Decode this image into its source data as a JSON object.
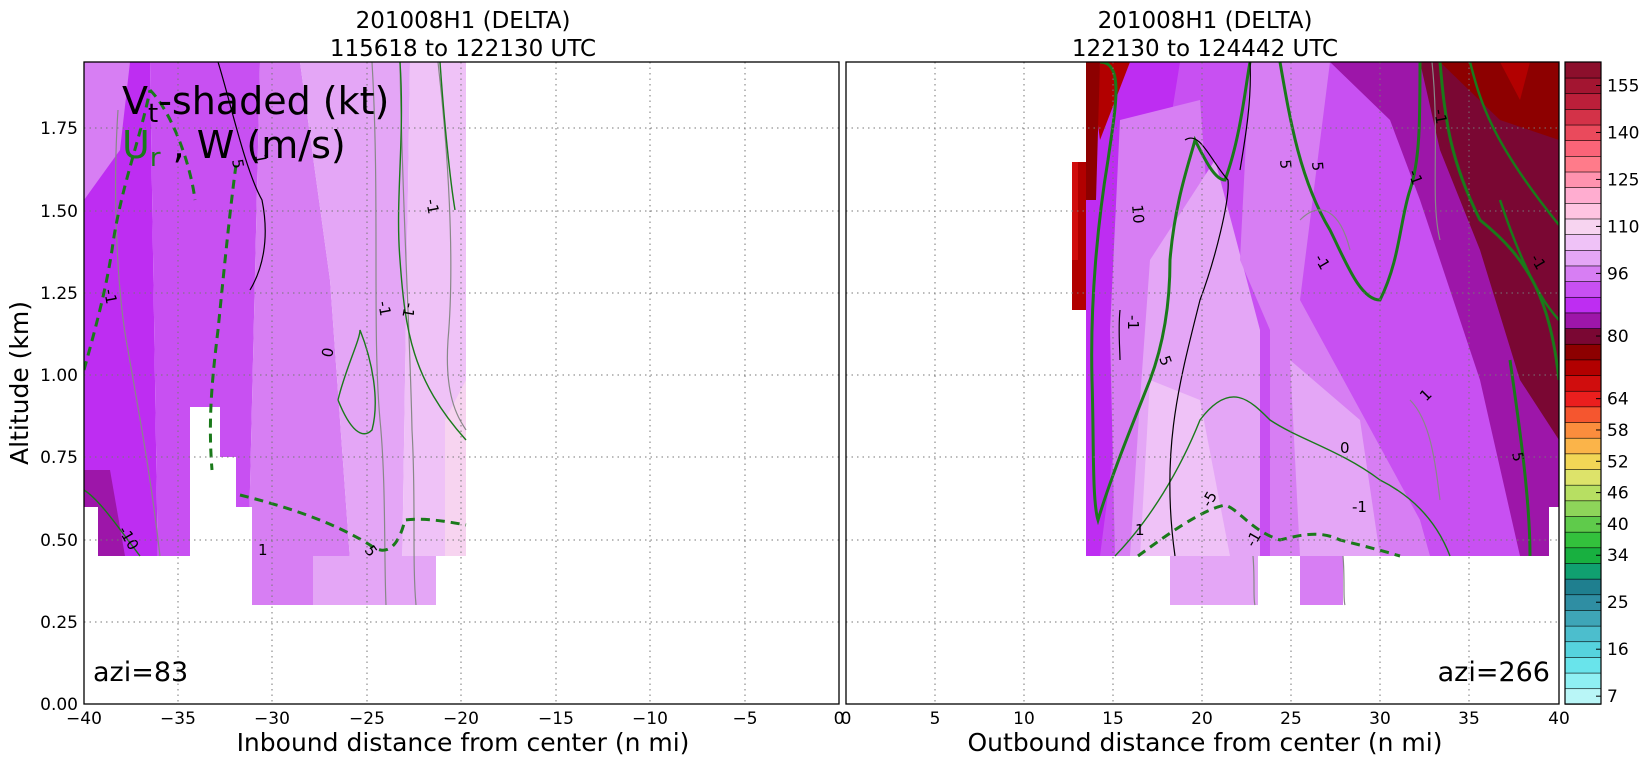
{
  "chart_data": [
    {
      "type": "heatmap",
      "panel": "inbound",
      "title": "201008H1 (DELTA)",
      "subtitle": "115618 to 122130 UTC",
      "xlabel": "Inbound distance from center (n mi)",
      "ylabel": "Altitude (km)",
      "xlim": [
        -40,
        0
      ],
      "ylim": [
        0,
        1.95
      ],
      "x_ticks": [
        "−40",
        "−35",
        "−30",
        "−25",
        "−20",
        "−15",
        "−10",
        "−5",
        "0"
      ],
      "y_ticks": [
        "0.00",
        "0.25",
        "0.50",
        "0.75",
        "1.00",
        "1.25",
        "1.50",
        "1.75"
      ],
      "grid": true,
      "annotation": "azi=83",
      "legend": {
        "line1": "V",
        "line1_sub": "t",
        "line1_rest": "-shaded (kt)",
        "line2a": "U",
        "line2a_sub": "r",
        "line2b": " , W (m/s)"
      },
      "data_extent_x": [
        -40,
        -20
      ],
      "x": [
        -39.2,
        -37.5,
        -35.5,
        -33.5,
        -31.5,
        -29.5,
        -27.5,
        -25.5,
        -23.5,
        -21.5,
        -20.3
      ],
      "vt_kt_at_1km": [
        74,
        76,
        80,
        80,
        82,
        84,
        86,
        88,
        92,
        94,
        96
      ],
      "ur_contours_ms": [
        "-10",
        "-5",
        "0",
        "5",
        "-1",
        "1",
        "-5"
      ],
      "w_contours_ms": [
        "1",
        "-1",
        "1"
      ]
    },
    {
      "type": "heatmap",
      "panel": "outbound",
      "title": "201008H1 (DELTA)",
      "subtitle": "122130 to 124442 UTC",
      "xlabel": "Outbound distance from center (n mi)",
      "xlim": [
        0,
        40
      ],
      "ylim": [
        0,
        1.95
      ],
      "x_ticks": [
        "0",
        "5",
        "10",
        "15",
        "20",
        "25",
        "30",
        "35",
        "40"
      ],
      "grid": true,
      "annotation": "azi=266",
      "data_extent_x": [
        13,
        40
      ],
      "x": [
        14,
        16,
        18,
        20,
        22,
        24,
        26,
        28,
        30,
        32,
        34,
        36,
        38,
        40
      ],
      "vt_kt_at_1km": [
        78,
        82,
        86,
        90,
        92,
        90,
        88,
        84,
        80,
        76,
        72,
        68,
        66,
        64
      ],
      "ur_contour_labels": [
        "10",
        "5",
        "0",
        "-5",
        "-1",
        "1",
        "-1",
        "-1",
        "5",
        "5",
        "-1"
      ],
      "w_contour_labels": [
        "-1",
        "1",
        "-1",
        "1",
        "-1"
      ]
    },
    {
      "type": "colorbar",
      "levels": [
        7,
        10,
        13,
        16,
        19,
        22,
        25,
        28,
        31,
        34,
        37,
        40,
        43,
        46,
        49,
        52,
        55,
        58,
        61,
        64,
        67,
        72,
        76,
        80,
        84,
        88,
        92,
        96,
        100,
        105,
        110,
        115,
        120,
        125,
        130,
        135,
        140,
        145,
        150,
        155
      ],
      "tick_labels": [
        "7",
        "16",
        "25",
        "34",
        "40",
        "46",
        "52",
        "58",
        "64",
        "80",
        "96",
        "110",
        "125",
        "140",
        "155"
      ],
      "colors": [
        "#b9f6f7",
        "#8ff0f3",
        "#69e4eb",
        "#56d3de",
        "#4cbecd",
        "#3ea5b7",
        "#2f8ea3",
        "#1f7f8f",
        "#10a070",
        "#18b040",
        "#33c13c",
        "#5fcb4b",
        "#8ed55a",
        "#b7df62",
        "#dde36a",
        "#f2d656",
        "#fbb449",
        "#fb8d3d",
        "#f5562f",
        "#eb1f1e",
        "#d00d0d",
        "#b20000",
        "#8d0000",
        "#7a0733",
        "#9d16a9",
        "#be2df2",
        "#c850f2",
        "#d77ef3",
        "#e4a6f6",
        "#efc2f7",
        "#f7d4f0",
        "#ffc4e2",
        "#ffadd0",
        "#ff93af",
        "#ff7b8a",
        "#fa6478",
        "#ea4a5c",
        "#d33248",
        "#bb1f3a",
        "#a31531",
        "#8c0f2c"
      ]
    }
  ]
}
